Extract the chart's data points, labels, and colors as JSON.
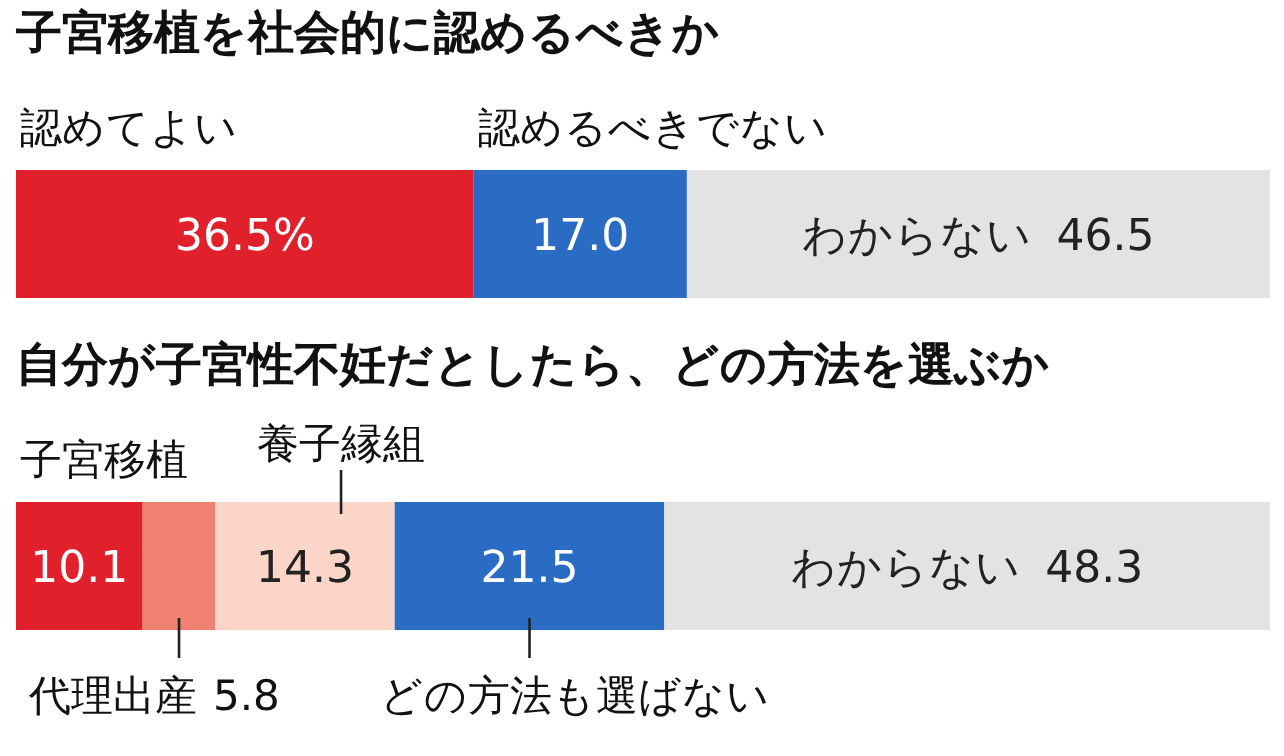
{
  "chart_data": [
    {
      "type": "bar",
      "orientation": "horizontal",
      "stacked": true,
      "title": "子宮移植を社会的に認めるべきか",
      "categories": [
        null
      ],
      "series": [
        {
          "name": "認めてよい",
          "color": "#e0202a",
          "values": [
            36.5
          ],
          "value_labels": [
            "36.5%"
          ]
        },
        {
          "name": "認めるべきでない",
          "color": "#2a6cc4",
          "values": [
            17.0
          ],
          "value_labels": [
            "17.0"
          ]
        },
        {
          "name": "わからない",
          "color": "#e3e3e3",
          "values": [
            46.5
          ],
          "value_labels": [
            "46.5"
          ]
        }
      ]
    },
    {
      "type": "bar",
      "orientation": "horizontal",
      "stacked": true,
      "title": "自分が子宮性不妊だとしたら、どの方法を選ぶか",
      "categories": [
        null
      ],
      "series": [
        {
          "name": "子宮移植",
          "color": "#e0202a",
          "values": [
            10.1
          ],
          "value_labels": [
            "10.1"
          ]
        },
        {
          "name": "代理出産",
          "color": "#f08070",
          "values": [
            5.8
          ],
          "value_labels": [
            "5.8"
          ]
        },
        {
          "name": "養子縁組",
          "color": "#fbd5c8",
          "values": [
            14.3
          ],
          "value_labels": [
            "14.3"
          ]
        },
        {
          "name": "どの方法も選ばない",
          "color": "#2a6cc4",
          "values": [
            21.5
          ],
          "value_labels": [
            "21.5"
          ]
        },
        {
          "name": "わからない",
          "color": "#e3e3e3",
          "values": [
            48.3
          ],
          "value_labels": [
            "48.3"
          ]
        }
      ]
    }
  ]
}
